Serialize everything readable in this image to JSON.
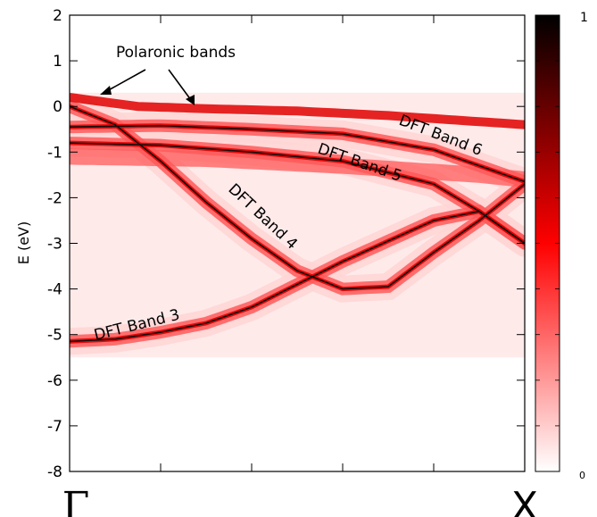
{
  "chart_data": {
    "type": "heatmap",
    "ylabel": "E (eV)",
    "ylim": [
      -8,
      2
    ],
    "yticks": [
      "2",
      "1",
      "0",
      "-1",
      "-2",
      "-3",
      "-4",
      "-5",
      "-6",
      "-7",
      "-8"
    ],
    "xticks": [
      "Γ",
      "X"
    ],
    "x_range": [
      0,
      1
    ],
    "colorbar": {
      "min_label": "0",
      "max_label": "1",
      "colors": [
        "#ffffff",
        "#ff0000",
        "#000000"
      ]
    },
    "annotations": [
      {
        "text": "Polaronic bands",
        "arrow_targets": [
          [
            0.05,
            0.25
          ],
          [
            0.35,
            0.05
          ]
        ]
      }
    ],
    "series": [
      {
        "name": "DFT Band 6",
        "x": [
          0,
          0.2,
          0.4,
          0.6,
          0.8,
          0.9,
          1.0
        ],
        "y": [
          -0.45,
          -0.42,
          -0.5,
          -0.6,
          -0.95,
          -1.3,
          -1.65
        ]
      },
      {
        "name": "DFT Band 5",
        "x": [
          0,
          0.2,
          0.4,
          0.6,
          0.8,
          0.9,
          1.0
        ],
        "y": [
          -0.8,
          -0.85,
          -1.0,
          -1.2,
          -1.7,
          -2.3,
          -3.0
        ]
      },
      {
        "name": "DFT Band 4",
        "x": [
          0,
          0.1,
          0.2,
          0.3,
          0.4,
          0.5,
          0.6,
          0.7,
          0.8,
          0.9,
          1.0
        ],
        "y": [
          0.0,
          -0.4,
          -1.2,
          -2.1,
          -2.9,
          -3.6,
          -4.0,
          -3.95,
          -3.2,
          -2.5,
          -1.7
        ]
      },
      {
        "name": "DFT Band 3",
        "x": [
          0,
          0.1,
          0.2,
          0.3,
          0.4,
          0.5,
          0.6,
          0.7,
          0.8,
          0.9,
          1.0
        ],
        "y": [
          -5.15,
          -5.1,
          -4.95,
          -4.75,
          -4.4,
          -3.9,
          -3.4,
          -2.95,
          -2.5,
          -2.3,
          -3.0
        ]
      }
    ],
    "curve_colors": {
      "band": "#111111",
      "heat_light": "#ffd6d6",
      "heat_mid": "#ff5a5a",
      "heat_strong": "#e00000"
    }
  }
}
